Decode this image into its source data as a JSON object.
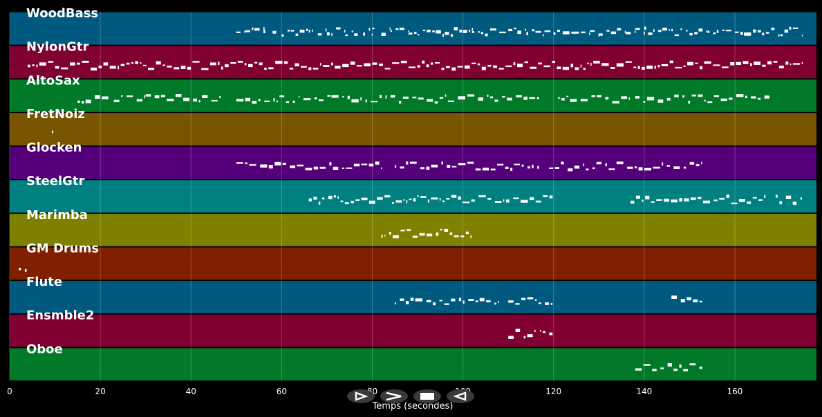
{
  "chart_data": {
    "type": "piano-roll",
    "xlabel": "Temps (secondes)",
    "xlim": [
      0,
      178
    ],
    "xticks": [
      0,
      20,
      40,
      60,
      80,
      100,
      120,
      140,
      160
    ],
    "grid": true,
    "tracks": [
      {
        "name": "WoodBass",
        "color": "#005a80",
        "note_density": 0.5,
        "notes": [
          [
            50,
            52
          ],
          [
            52,
            54
          ],
          [
            54,
            56
          ],
          [
            56,
            57
          ],
          [
            58,
            59
          ],
          [
            60,
            62
          ],
          [
            62,
            64
          ],
          [
            64,
            66
          ],
          [
            66,
            67
          ],
          [
            68,
            70
          ],
          [
            70,
            71
          ],
          [
            72,
            74
          ],
          [
            74,
            76
          ],
          [
            76,
            77
          ],
          [
            78,
            80
          ],
          [
            80,
            81
          ],
          [
            82,
            84
          ],
          [
            84,
            86
          ],
          [
            86,
            88
          ],
          [
            88,
            90
          ],
          [
            90,
            92
          ],
          [
            92,
            94
          ],
          [
            94,
            96
          ],
          [
            96,
            98
          ],
          [
            98,
            100
          ],
          [
            100,
            102
          ],
          [
            102,
            104
          ],
          [
            104,
            106
          ],
          [
            106,
            108
          ],
          [
            108,
            110
          ],
          [
            110,
            112
          ],
          [
            112,
            114
          ],
          [
            114,
            116
          ],
          [
            116,
            118
          ],
          [
            118,
            120
          ],
          [
            120,
            122
          ],
          [
            122,
            124
          ],
          [
            124,
            126
          ],
          [
            126,
            128
          ],
          [
            128,
            130
          ],
          [
            130,
            132
          ],
          [
            132,
            134
          ],
          [
            134,
            136
          ],
          [
            136,
            138
          ],
          [
            138,
            140
          ],
          [
            140,
            142
          ],
          [
            142,
            144
          ],
          [
            144,
            146
          ],
          [
            146,
            148
          ],
          [
            148,
            150
          ],
          [
            150,
            152
          ],
          [
            152,
            154
          ],
          [
            154,
            156
          ],
          [
            156,
            158
          ],
          [
            158,
            160
          ],
          [
            160,
            162
          ],
          [
            162,
            164
          ],
          [
            164,
            166
          ],
          [
            166,
            168
          ],
          [
            168,
            170
          ],
          [
            170,
            172
          ],
          [
            172,
            175
          ]
        ]
      },
      {
        "name": "NylonGtr",
        "color": "#800032",
        "note_density": 1.0,
        "notes": [
          [
            4,
            175
          ]
        ]
      },
      {
        "name": "AltoSax",
        "color": "#007a28",
        "note_density": 0.6,
        "notes": [
          [
            15,
            22
          ],
          [
            23,
            30
          ],
          [
            30,
            47
          ],
          [
            50,
            71
          ],
          [
            71,
            92
          ],
          [
            92,
            101
          ],
          [
            101,
            117
          ],
          [
            121,
            137
          ],
          [
            138,
            168
          ]
        ]
      },
      {
        "name": "FretNoiz",
        "color": "#7a5500",
        "note_density": 0.0,
        "notes": [
          [
            9.3,
            9.5
          ]
        ]
      },
      {
        "name": "Glocken",
        "color": "#55007a",
        "note_density": 0.7,
        "notes": [
          [
            50,
            82
          ],
          [
            85,
            117
          ],
          [
            119,
            153
          ]
        ]
      },
      {
        "name": "SteelGtr",
        "color": "#008080",
        "note_density": 0.9,
        "notes": [
          [
            66,
            120
          ],
          [
            137,
            167
          ],
          [
            169,
            175
          ]
        ]
      },
      {
        "name": "Marimba",
        "color": "#808000",
        "note_density": 0.8,
        "notes": [
          [
            82,
            102
          ]
        ]
      },
      {
        "name": "GM Drums",
        "color": "#802000",
        "note_density": 0.0,
        "notes": [
          [
            2,
            4
          ]
        ]
      },
      {
        "name": "Flute",
        "color": "#005a80",
        "note_density": 0.7,
        "notes": [
          [
            85,
            108
          ],
          [
            110,
            120
          ],
          [
            146,
            153
          ]
        ]
      },
      {
        "name": "Ensmble2",
        "color": "#800032",
        "note_density": 0.7,
        "notes": [
          [
            110,
            116
          ],
          [
            117,
            120
          ]
        ]
      },
      {
        "name": "Oboe",
        "color": "#007a28",
        "note_density": 0.7,
        "notes": [
          [
            138,
            153
          ]
        ]
      }
    ]
  },
  "controls": {
    "play": "play-icon",
    "forward": "fast-forward-icon",
    "stop": "stop-icon",
    "back": "rewind-icon"
  }
}
